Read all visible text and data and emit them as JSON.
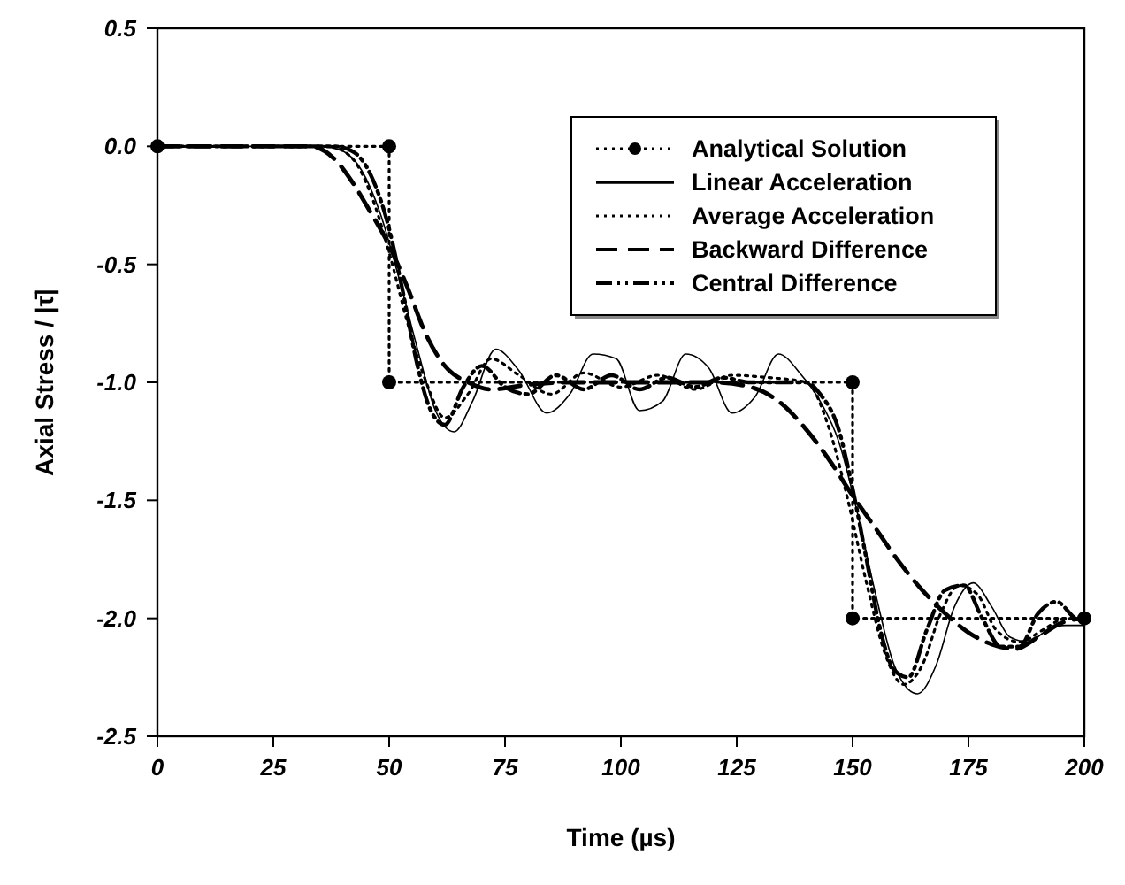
{
  "chart_data": {
    "type": "line",
    "xlabel": "Time (µs)",
    "ylabel": "Axial Stress / |τ̄|",
    "xlim": [
      0,
      200
    ],
    "ylim": [
      -2.5,
      0.5
    ],
    "xticks": [
      0,
      25,
      50,
      75,
      100,
      125,
      150,
      175,
      200
    ],
    "yticks": [
      {
        "value": 0.5,
        "label": "0.5"
      },
      {
        "value": 0,
        "label": "0.0"
      },
      {
        "value": -0.5,
        "label": "-0.5"
      },
      {
        "value": -1,
        "label": "-1.0"
      },
      {
        "value": -1.5,
        "label": "-1.5"
      },
      {
        "value": -2,
        "label": "-2.0"
      },
      {
        "value": -2.5,
        "label": "-2.5"
      }
    ],
    "grid": false,
    "legend": "top right",
    "series": [
      {
        "name": "Analytical Solution",
        "color": "#000000",
        "line_style": "dotted",
        "marker": "circle",
        "x": [
          0,
          50,
          50,
          150,
          150,
          200
        ],
        "values": [
          0,
          0,
          -1,
          -1,
          -2,
          -2
        ]
      },
      {
        "name": "Linear Acceleration",
        "color": "#000000",
        "line_style": "solid",
        "marker": "none",
        "x": [
          0,
          35,
          40,
          44,
          48,
          52,
          56,
          60,
          64,
          68,
          73,
          78,
          84,
          89,
          94,
          99,
          104,
          109,
          114,
          119,
          124,
          129,
          134,
          139,
          143,
          147,
          151,
          155,
          159,
          164,
          168,
          172,
          176,
          180,
          184,
          188,
          192,
          196,
          200
        ],
        "values": [
          0,
          0,
          -0.02,
          -0.1,
          -0.28,
          -0.55,
          -0.85,
          -1.12,
          -1.21,
          -1.08,
          -0.86,
          -0.95,
          -1.13,
          -1.05,
          -0.88,
          -0.9,
          -1.12,
          -1.08,
          -0.88,
          -0.94,
          -1.13,
          -1.06,
          -0.88,
          -0.97,
          -1.08,
          -1.25,
          -1.55,
          -1.9,
          -2.2,
          -2.32,
          -2.2,
          -1.95,
          -1.85,
          -1.95,
          -2.08,
          -2.1,
          -2.05,
          -2.03,
          -2.03
        ]
      },
      {
        "name": "Average Acceleration",
        "color": "#000000",
        "line_style": "dotted",
        "marker": "none",
        "x": [
          0,
          37,
          42,
          46,
          50,
          54,
          58,
          62,
          67,
          72,
          78,
          85,
          92,
          100,
          108,
          116,
          124,
          132,
          140,
          145,
          149,
          153,
          157,
          161,
          165,
          169,
          173,
          177,
          181,
          186,
          191,
          196,
          200
        ],
        "values": [
          0,
          0,
          -0.05,
          -0.2,
          -0.45,
          -0.75,
          -1.0,
          -1.15,
          -1.05,
          -0.9,
          -0.97,
          -1.05,
          -0.96,
          -1.02,
          -0.97,
          -1.03,
          -0.97,
          -0.98,
          -1.0,
          -1.2,
          -1.5,
          -1.85,
          -2.15,
          -2.28,
          -2.2,
          -1.98,
          -1.86,
          -1.9,
          -2.05,
          -2.1,
          -2.05,
          -2.0,
          -2.01
        ]
      },
      {
        "name": "Backward Difference",
        "color": "#000000",
        "line_style": "dashed",
        "marker": "none",
        "x": [
          0,
          33,
          38,
          42,
          46,
          50,
          54,
          58,
          62,
          67,
          72,
          80,
          90,
          100,
          110,
          120,
          128,
          134,
          140,
          145,
          150,
          155,
          160,
          165,
          170,
          175,
          180,
          185,
          190,
          195,
          200
        ],
        "values": [
          0,
          0,
          -0.05,
          -0.15,
          -0.28,
          -0.42,
          -0.6,
          -0.8,
          -0.93,
          -1.0,
          -1.03,
          -1.01,
          -1.0,
          -1.0,
          -1.0,
          -1.0,
          -1.02,
          -1.08,
          -1.2,
          -1.33,
          -1.48,
          -1.62,
          -1.76,
          -1.88,
          -1.98,
          -2.06,
          -2.11,
          -2.13,
          -2.08,
          -2.02,
          -2.0
        ]
      },
      {
        "name": "Central Difference",
        "color": "#000000",
        "line_style": "dashdot",
        "marker": "none",
        "x": [
          0,
          38,
          42,
          46,
          50,
          53,
          56,
          59,
          62,
          66,
          70,
          75,
          80,
          86,
          92,
          98,
          104,
          110,
          116,
          122,
          128,
          134,
          140,
          143,
          147,
          150,
          153,
          156,
          159,
          162,
          166,
          170,
          174,
          178,
          182,
          186,
          190,
          194,
          198,
          200
        ],
        "values": [
          0,
          0,
          -0.02,
          -0.12,
          -0.35,
          -0.62,
          -0.92,
          -1.12,
          -1.18,
          -1.02,
          -0.93,
          -1.02,
          -1.05,
          -0.97,
          -1.03,
          -0.97,
          -1.03,
          -0.98,
          -1.02,
          -0.98,
          -1.0,
          -1.0,
          -1.0,
          -1.05,
          -1.2,
          -1.45,
          -1.75,
          -2.05,
          -2.22,
          -2.25,
          -2.05,
          -1.88,
          -1.86,
          -2.0,
          -2.12,
          -2.12,
          -1.98,
          -1.93,
          -2.0,
          -2.02
        ]
      }
    ]
  }
}
